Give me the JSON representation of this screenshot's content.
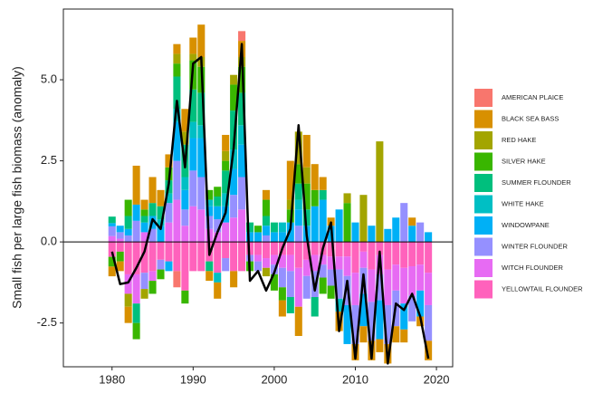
{
  "chart_data": {
    "type": "stacked-bar-line",
    "y_label": "Small fish per large fish biomass (anomaly)",
    "x": [
      1980,
      1981,
      1982,
      1983,
      1984,
      1985,
      1986,
      1987,
      1988,
      1989,
      1990,
      1991,
      1992,
      1993,
      1994,
      1995,
      1996,
      1997,
      1998,
      1999,
      2000,
      2001,
      2002,
      2003,
      2004,
      2005,
      2006,
      2007,
      2008,
      2009,
      2010,
      2011,
      2012,
      2013,
      2014,
      2015,
      2016,
      2017,
      2018,
      2019
    ],
    "xlim": [
      1974,
      2022
    ],
    "xticks": [
      1980,
      1990,
      2000,
      2010,
      2020
    ],
    "ylim": [
      -3.85,
      7.18
    ],
    "yticks": [
      {
        "value": -2.5,
        "label": "-2.5"
      },
      {
        "value": 0,
        "label": "0.0"
      },
      {
        "value": 2.5,
        "label": "2.5"
      },
      {
        "value": 5,
        "label": "5.0"
      }
    ],
    "series": [
      {
        "name": "AMERICAN PLAICE",
        "color": "#F8766D",
        "values": [
          0,
          0,
          0,
          0,
          0,
          0,
          0,
          0,
          -0.5,
          0,
          0,
          0,
          0,
          0,
          0,
          0,
          0.3,
          0,
          0,
          0,
          0,
          0,
          0,
          0,
          0,
          0,
          0,
          0,
          0,
          0,
          0,
          0,
          0,
          0,
          0,
          0,
          0,
          0,
          0,
          0
        ]
      },
      {
        "name": "BLACK SEA BASS",
        "color": "#D89000",
        "values": [
          -0.3,
          -0.3,
          -0.5,
          1.2,
          0.3,
          0.8,
          0.5,
          0.4,
          0.3,
          0.7,
          0.5,
          1.0,
          -0.3,
          -0.5,
          0.5,
          -0.5,
          0.5,
          0,
          0,
          0.3,
          0,
          -0.5,
          1.2,
          -0.9,
          1.0,
          0.8,
          0.4,
          0.25,
          -0.6,
          0,
          -0.5,
          -0.5,
          -0.6,
          -0.4,
          -0.6,
          -0.5,
          -0.4,
          0.25,
          -0.3,
          -0.6
        ]
      },
      {
        "name": "RED HAKE",
        "color": "#A3A500",
        "values": [
          0,
          0,
          -0.4,
          0,
          -0.3,
          0,
          0,
          0,
          0.3,
          0.4,
          0.2,
          0.3,
          0,
          0,
          0.3,
          0.3,
          0.3,
          0,
          0,
          -0.26,
          0,
          0,
          0.3,
          1.0,
          0.5,
          0,
          0,
          0,
          0,
          0.3,
          0,
          1.45,
          0,
          3.1,
          0,
          0,
          0,
          0,
          0,
          0
        ]
      },
      {
        "name": "SILVER HAKE",
        "color": "#39B600",
        "values": [
          -0.3,
          -0.3,
          0.5,
          -0.5,
          0.2,
          -0.4,
          -0.3,
          0.4,
          0.4,
          -0.4,
          0.9,
          0.8,
          0.3,
          0.3,
          0.3,
          0.8,
          0.8,
          -0.3,
          0.2,
          0.5,
          -0.5,
          -0.4,
          0.4,
          0.6,
          0.8,
          0.5,
          -0.5,
          -0.4,
          0,
          1.2,
          0,
          0,
          0,
          0,
          0,
          0,
          0,
          0,
          0,
          0
        ]
      },
      {
        "name": "SUMMER FLOUNDER",
        "color": "#00BF7D",
        "values": [
          0.2,
          0,
          0.4,
          -0.6,
          0.2,
          0.4,
          0.4,
          0.4,
          1.0,
          1.0,
          1.0,
          1.0,
          -0.3,
          0.3,
          0.7,
          1.2,
          1.0,
          0.3,
          0,
          0.3,
          0.3,
          0,
          -0.5,
          0.5,
          0.5,
          -0.6,
          0.3,
          0,
          0,
          0,
          0,
          0,
          0,
          0,
          0,
          0,
          0,
          0,
          0,
          0
        ]
      },
      {
        "name": "WHITE HAKE",
        "color": "#00BFC4",
        "values": [
          0,
          0,
          0,
          0,
          0,
          0,
          0.2,
          0.3,
          0.4,
          0.4,
          0.5,
          0.4,
          0.2,
          -0.3,
          0.4,
          0.6,
          0.6,
          0,
          0,
          0,
          0,
          0.3,
          0,
          0.3,
          0,
          0,
          0,
          0,
          -0.4,
          0,
          0,
          0,
          0,
          0,
          0,
          0,
          0,
          0,
          0,
          0
        ]
      },
      {
        "name": "WINDOWPANE",
        "color": "#00B0F6",
        "values": [
          0.1,
          0.2,
          0.2,
          0.5,
          0.3,
          0.4,
          0.5,
          -0.3,
          1.2,
          0.6,
          1.0,
          1.2,
          0.3,
          0.4,
          0.5,
          0.8,
          1.0,
          0.3,
          0.3,
          0.3,
          0.3,
          0.3,
          0.6,
          0.5,
          0.5,
          1.1,
          1.3,
          0.5,
          1.0,
          -1.2,
          0.6,
          -1.0,
          0.5,
          -1.2,
          0.4,
          0.75,
          -0.8,
          0.5,
          -0.8,
          0.3
        ]
      },
      {
        "name": "WINTER FLOUNDER",
        "color": "#9590FF",
        "values": [
          0.3,
          0.2,
          0.2,
          0.65,
          -0.5,
          0.4,
          -0.3,
          0.6,
          1.2,
          0.5,
          1.1,
          1.0,
          0.4,
          0.4,
          -0.4,
          0.7,
          1.0,
          -0.2,
          -0.3,
          0.2,
          -0.3,
          -0.6,
          -0.8,
          0.5,
          -0.7,
          -0.8,
          -0.4,
          -0.5,
          -0.9,
          -0.9,
          -1.2,
          -0.8,
          -1.2,
          -0.8,
          -1.2,
          -1.1,
          1.2,
          -0.8,
          0.6,
          -1.1
        ]
      },
      {
        "name": "WITCH FLOUNDER",
        "color": "#E76BF3",
        "values": [
          0.18,
          0.1,
          -0.6,
          -0.9,
          0.3,
          -0.3,
          0,
          0.6,
          1.3,
          0.5,
          1.1,
          1.0,
          0.4,
          0.3,
          0.6,
          0.75,
          1.0,
          0,
          -0.2,
          -0.3,
          -0.3,
          -0.4,
          -0.5,
          -1.2,
          -0.5,
          -0.5,
          -0.3,
          -0.4,
          -0.4,
          -0.6,
          -1.0,
          -0.5,
          -1.0,
          -0.6,
          -1.1,
          -0.8,
          -1.1,
          -0.9,
          -0.8,
          -1.0
        ]
      },
      {
        "name": "YELLOWTAIL FLOUNDER",
        "color": "#FF62BC",
        "values": [
          -0.46,
          -0.3,
          -1.0,
          -1.0,
          -0.95,
          -0.9,
          -0.55,
          -0.6,
          -0.9,
          -1.5,
          -0.9,
          -0.9,
          -0.6,
          -0.95,
          -0.5,
          -0.9,
          -0.9,
          -0.4,
          -0.4,
          -0.5,
          -0.4,
          -0.4,
          -0.4,
          -0.8,
          -0.55,
          -0.4,
          -0.4,
          -0.45,
          -0.45,
          -0.45,
          -0.95,
          -0.3,
          -0.85,
          -0.4,
          -0.85,
          -0.7,
          -0.8,
          -0.75,
          -0.7,
          -0.95
        ]
      }
    ],
    "line": {
      "color": "#000000",
      "values": [
        -0.3,
        -1.3,
        -1.25,
        -0.8,
        -0.3,
        0.7,
        0.4,
        1.8,
        4.35,
        2.3,
        5.5,
        5.7,
        -0.4,
        0.3,
        0.9,
        2.9,
        6.1,
        -1.2,
        -0.9,
        -1.5,
        -0.95,
        -0.2,
        0.4,
        3.6,
        0.2,
        -1.5,
        -0.2,
        0.6,
        -2.75,
        -1.2,
        -3.6,
        -1.0,
        -3.6,
        -0.3,
        -3.75,
        -1.9,
        -2.1,
        -1.6,
        -2.3,
        -3.6
      ]
    }
  }
}
